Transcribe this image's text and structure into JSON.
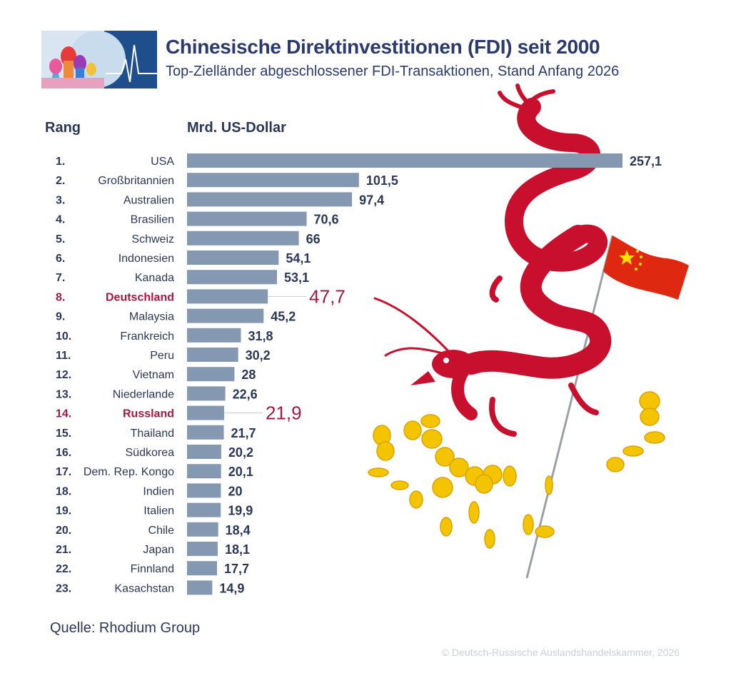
{
  "header": {
    "title": "Chinesische Direktinvestitionen (FDI) seit 2000",
    "subtitle": "Top-Zielländer abgeschlossener FDI-Transaktionen, Stand Anfang 2026",
    "rank_label": "Rang",
    "unit_label": "Mrd. US-Dollar"
  },
  "footer": {
    "source": "Quelle: Rhodium Group",
    "copyright": "© Deutsch-Russische Auslandshandelskammer, 2026"
  },
  "colors": {
    "bar": "#8598b1",
    "text": "#2b3757",
    "highlight": "#a4193d",
    "dragon": "#c8102e",
    "coin": "#f5c400"
  },
  "chart_data": {
    "type": "bar",
    "orientation": "horizontal",
    "ranks": [
      "1.",
      "2.",
      "3.",
      "4.",
      "5.",
      "6.",
      "7.",
      "8.",
      "9.",
      "10.",
      "11.",
      "12.",
      "13.",
      "14.",
      "15.",
      "16.",
      "17.",
      "18.",
      "19.",
      "20.",
      "21.",
      "22.",
      "23."
    ],
    "categories": [
      "USA",
      "Großbritannien",
      "Australien",
      "Brasilien",
      "Schweiz",
      "Indonesien",
      "Kanada",
      "Deutschland",
      "Malaysia",
      "Frankreich",
      "Peru",
      "Vietnam",
      "Niederlande",
      "Russland",
      "Thailand",
      "Südkorea",
      "Dem. Rep. Kongo",
      "Indien",
      "Italien",
      "Chile",
      "Japan",
      "Finnland",
      "Kasachstan"
    ],
    "values": [
      257.1,
      101.5,
      97.4,
      70.6,
      66,
      54.1,
      53.1,
      47.7,
      45.2,
      31.8,
      30.2,
      28,
      22.6,
      21.9,
      21.7,
      20.2,
      20.1,
      20,
      19.9,
      18.4,
      18.1,
      17.7,
      14.9
    ],
    "value_labels": [
      "257,1",
      "101,5",
      "97,4",
      "70,6",
      "66",
      "54,1",
      "53,1",
      "47,7",
      "45,2",
      "31,8",
      "30,2",
      "28",
      "22,6",
      "21,9",
      "21,7",
      "20,2",
      "20,1",
      "20",
      "19,9",
      "18,4",
      "18,1",
      "17,7",
      "14,9"
    ],
    "highlighted": [
      "Deutschland",
      "Russland"
    ],
    "xlim": [
      0,
      257.1
    ]
  }
}
